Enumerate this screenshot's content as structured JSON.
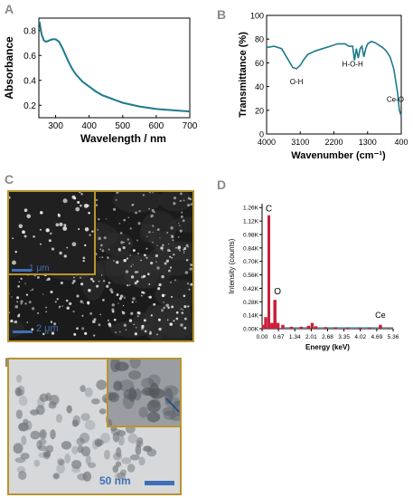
{
  "panels": {
    "a": {
      "letter": "A"
    },
    "b": {
      "letter": "B"
    },
    "c": {
      "letter": "C",
      "inset_scale_label": "1 μm",
      "main_scale_label": "2 μm"
    },
    "d": {
      "letter": "D"
    },
    "e": {
      "letter": "E",
      "scale_label": "50 nm"
    }
  },
  "colors": {
    "teal": "#1e7a8c",
    "spectrum_red": "#cc1f3a",
    "scalebar_blue": "#3f6fb4",
    "frame_gold": "#b9932f",
    "label_gray": "#8a8a8a"
  },
  "chart_data": [
    {
      "panel": "A",
      "type": "line",
      "xlabel": "Wavelength / nm",
      "ylabel": "Absorbance",
      "xlim": [
        250,
        700
      ],
      "ylim": [
        0.1,
        0.9
      ],
      "xticks": [
        300,
        400,
        500,
        600,
        700
      ],
      "yticks": [
        0.2,
        0.4,
        0.6,
        0.8
      ],
      "grid": false,
      "color": "#1e7a8c",
      "x": [
        252,
        258,
        265,
        272,
        280,
        290,
        300,
        310,
        320,
        330,
        340,
        350,
        360,
        370,
        380,
        390,
        400,
        420,
        440,
        460,
        480,
        500,
        550,
        600,
        650,
        700
      ],
      "y": [
        0.87,
        0.77,
        0.72,
        0.71,
        0.72,
        0.73,
        0.73,
        0.71,
        0.66,
        0.6,
        0.54,
        0.49,
        0.45,
        0.42,
        0.39,
        0.37,
        0.35,
        0.31,
        0.28,
        0.26,
        0.24,
        0.22,
        0.19,
        0.17,
        0.16,
        0.15
      ]
    },
    {
      "panel": "B",
      "type": "line",
      "xlabel": "Wavenumber (cm⁻¹)",
      "ylabel": "Transmittance (%)",
      "xlim": [
        4000,
        400
      ],
      "ylim": [
        0,
        100
      ],
      "xticks": [
        4000,
        3100,
        2200,
        1300,
        400
      ],
      "yticks": [
        0,
        20,
        40,
        60,
        80,
        100
      ],
      "grid": false,
      "color": "#1e7a8c",
      "annotations": [
        "O-H",
        "H-O-H",
        "Ce-O"
      ],
      "x": [
        4000,
        3800,
        3600,
        3450,
        3300,
        3200,
        3100,
        3000,
        2900,
        2700,
        2500,
        2300,
        2100,
        1900,
        1800,
        1700,
        1650,
        1600,
        1550,
        1500,
        1450,
        1400,
        1350,
        1300,
        1200,
        1100,
        1000,
        900,
        800,
        700,
        600,
        550,
        500,
        450,
        400
      ],
      "y": [
        73,
        74,
        72,
        64,
        56,
        55,
        58,
        63,
        67,
        70,
        72,
        74,
        76,
        76,
        74,
        74,
        62,
        72,
        64,
        72,
        74,
        65,
        72,
        76,
        78,
        77,
        75,
        73,
        70,
        65,
        55,
        45,
        35,
        20,
        15
      ]
    },
    {
      "panel": "D",
      "type": "bar",
      "xlabel": "Energy (keV)",
      "ylabel": "Intensity (counts)",
      "xlim": [
        0,
        5.36
      ],
      "ylim": [
        0,
        1300
      ],
      "xticks": [
        "0.00",
        "0.67",
        "1.34",
        "2.01",
        "2.68",
        "3.35",
        "4.02",
        "4.69",
        "5.36"
      ],
      "yticks": [
        "0.00K",
        "0.14K",
        "0.28K",
        "0.42K",
        "0.56K",
        "0.70K",
        "0.84K",
        "0.98K",
        "1.12K",
        "1.26K"
      ],
      "grid": false,
      "color": "#cc1f3a",
      "annotations": [
        "C",
        "O",
        "Ce"
      ],
      "x": [
        0.05,
        0.15,
        0.277,
        0.4,
        0.525,
        0.65,
        0.85,
        1.2,
        1.6,
        1.9,
        2.05,
        2.2,
        2.6,
        3.0,
        3.5,
        4.0,
        4.4,
        4.84,
        5.2
      ],
      "y": [
        40,
        120,
        1180,
        60,
        300,
        60,
        40,
        20,
        20,
        30,
        60,
        25,
        15,
        12,
        10,
        10,
        10,
        40,
        8
      ]
    }
  ]
}
